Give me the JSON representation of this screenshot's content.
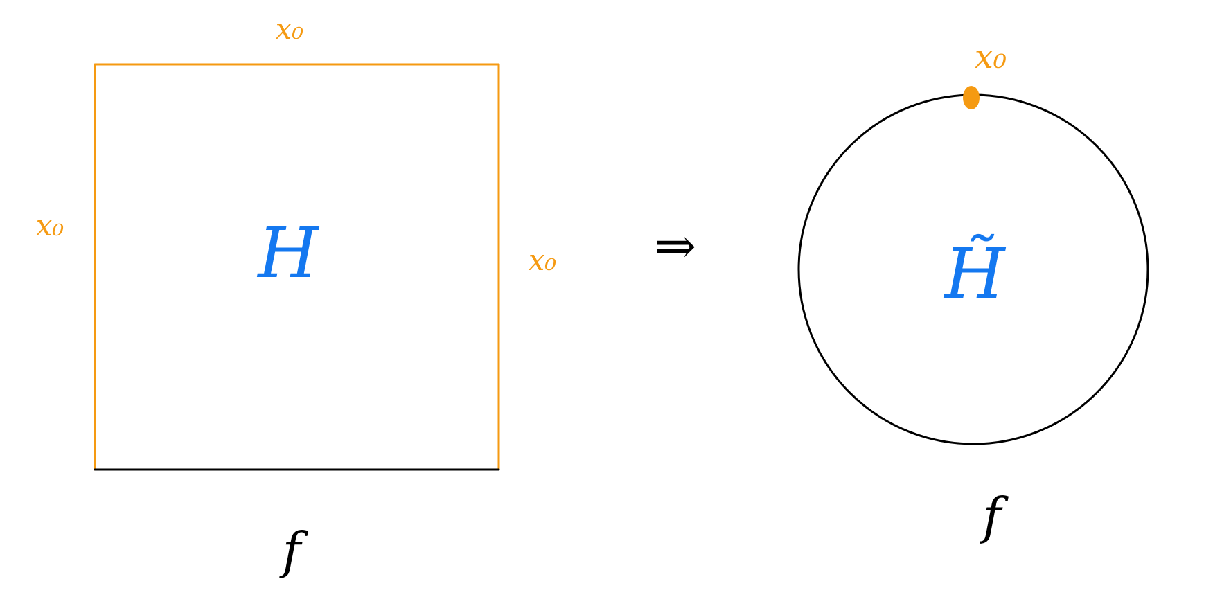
{
  "colors": {
    "identified_edges": "#F59A12",
    "basepoint": "#F59A12",
    "homotopy_labels": "#1478F0",
    "map_and_outline": "#000000",
    "background": "#FFFFFF"
  },
  "left_panel": {
    "shape": "square",
    "edge_labels": {
      "top": "x₀",
      "left": "x₀",
      "right": "x₀",
      "bottom": "f"
    },
    "center_label": "H"
  },
  "connector": {
    "symbol": "⇒",
    "icon": "implies-arrow-icon"
  },
  "right_panel": {
    "shape": "circle",
    "basepoint_label": "x₀",
    "center_label": "H̃",
    "boundary_label": "f"
  }
}
